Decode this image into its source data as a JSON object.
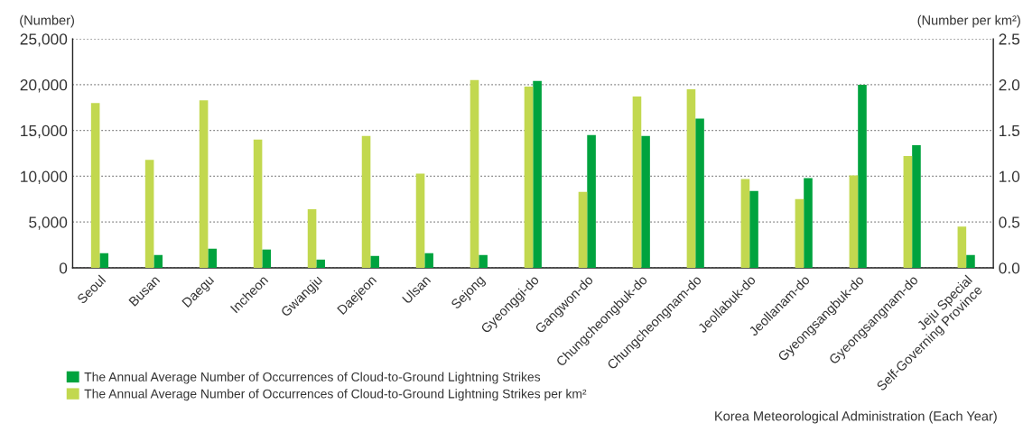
{
  "chart_data": {
    "type": "bar",
    "categories": [
      "Seoul",
      "Busan",
      "Daegu",
      "Incheon",
      "Gwangju",
      "Daejeon",
      "Ulsan",
      "Sejong",
      "Gyeonggi-do",
      "Gangwon-do",
      "Chungcheongbuk-do",
      "Chungcheongnam-do",
      "Jeollabuk-do",
      "Jeollanam-do",
      "Gyeongsangbuk-do",
      "Gyeongsangnam-do",
      "Jeju Special\nSelf-Governing Province"
    ],
    "series": [
      {
        "name": "The Annual Average Number of Occurrences of Cloud-to-Ground Lightning Strikes",
        "color": "#00a33e",
        "axis": "y",
        "values": [
          1600,
          1400,
          2100,
          2000,
          900,
          1300,
          1600,
          1400,
          20400,
          14500,
          14400,
          16300,
          8400,
          9800,
          20000,
          13400,
          1400
        ]
      },
      {
        "name": "The Annual Average Number of Occurrences of Cloud-to-Ground Lightning Strikes per km²",
        "color": "#c2d84f",
        "axis": "y2",
        "values": [
          1.8,
          1.18,
          1.83,
          1.4,
          0.64,
          1.44,
          1.03,
          2.05,
          1.98,
          0.83,
          1.87,
          1.95,
          0.97,
          0.75,
          1.01,
          1.22,
          0.45
        ]
      }
    ],
    "ylabel": "(Number)",
    "y2label": "(Number per km²)",
    "ylim": [
      0,
      25000
    ],
    "yticks": [
      0,
      {
        "value": 5000,
        "label": "5,000"
      },
      {
        "value": 10000,
        "label": "10,000"
      },
      {
        "value": 15000,
        "label": "15,000"
      },
      {
        "value": 20000,
        "label": "20,000"
      },
      {
        "value": 25000,
        "label": "25,000"
      }
    ],
    "y2lim": [
      0,
      2.5
    ],
    "y2ticks": [
      {
        "value": 0,
        "label": "0.0"
      },
      0.5,
      {
        "value": 1,
        "label": "1.0"
      },
      1.5,
      {
        "value": 2,
        "label": "2.0"
      },
      2.5
    ],
    "grid": "y",
    "legend": "bottom left",
    "annotations": [
      "Korea Meteorological Administration (Each Year)"
    ]
  }
}
